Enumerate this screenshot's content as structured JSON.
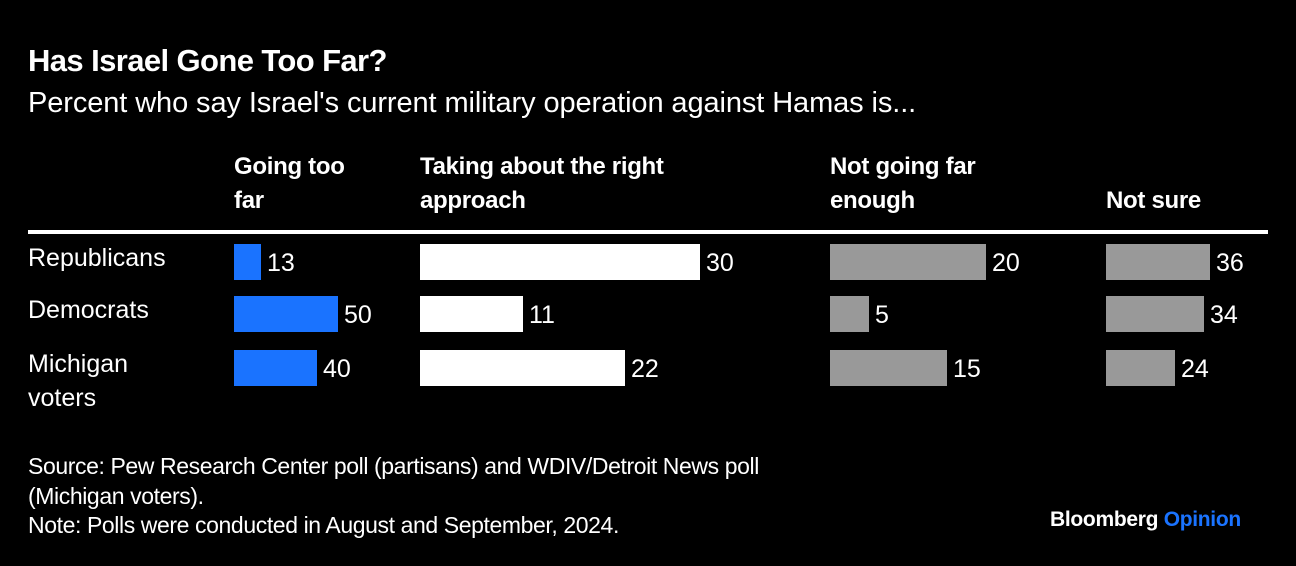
{
  "header": {
    "title": "Has Israel Gone Too Far?",
    "subtitle": "Percent who say Israel's current military operation against Hamas is..."
  },
  "footer": {
    "source_line1": "Source: Pew Research Center poll (partisans) and WDIV/Detroit News poll",
    "source_line2": "(Michigan voters).",
    "note": "Note: Polls were conducted in August and September, 2024.",
    "brand_main": "Bloomberg",
    "brand_accent": "Opinion"
  },
  "colors": {
    "background": "#000000",
    "going_too_far": "#1a73ff",
    "right_approach": "#ffffff",
    "not_far_enough": "#999999",
    "not_sure": "#999999",
    "text": "#ffffff",
    "brand_accent": "#1a73ff"
  },
  "chart_data": {
    "type": "bar",
    "orientation": "horizontal",
    "layout": "small-multiples",
    "title": "Has Israel Gone Too Far?",
    "subtitle": "Percent who say Israel's current military operation against Hamas is...",
    "xlabel": "",
    "ylabel": "",
    "units": "percent",
    "categories": [
      "Republicans",
      "Democrats",
      "Michigan voters"
    ],
    "category_lines": [
      [
        "Republicans"
      ],
      [
        "Democrats"
      ],
      [
        "Michigan",
        "voters"
      ]
    ],
    "series": [
      {
        "name": "Going too far",
        "header_lines": [
          "Going too",
          "far"
        ],
        "color": "#1a73ff",
        "values": [
          13,
          50,
          40
        ]
      },
      {
        "name": "Taking about the right approach",
        "header_lines": [
          "Taking about the right",
          "approach"
        ],
        "color": "#ffffff",
        "values": [
          30,
          11,
          22
        ]
      },
      {
        "name": "Not going far enough",
        "header_lines": [
          "Not going far",
          "enough"
        ],
        "color": "#999999",
        "values": [
          20,
          5,
          15
        ]
      },
      {
        "name": "Not sure",
        "header_lines": [
          "",
          "Not sure"
        ],
        "color": "#999999",
        "values": [
          36,
          34,
          24
        ]
      }
    ],
    "data_labels": true,
    "grid": false,
    "legend": "none (column headers)"
  }
}
